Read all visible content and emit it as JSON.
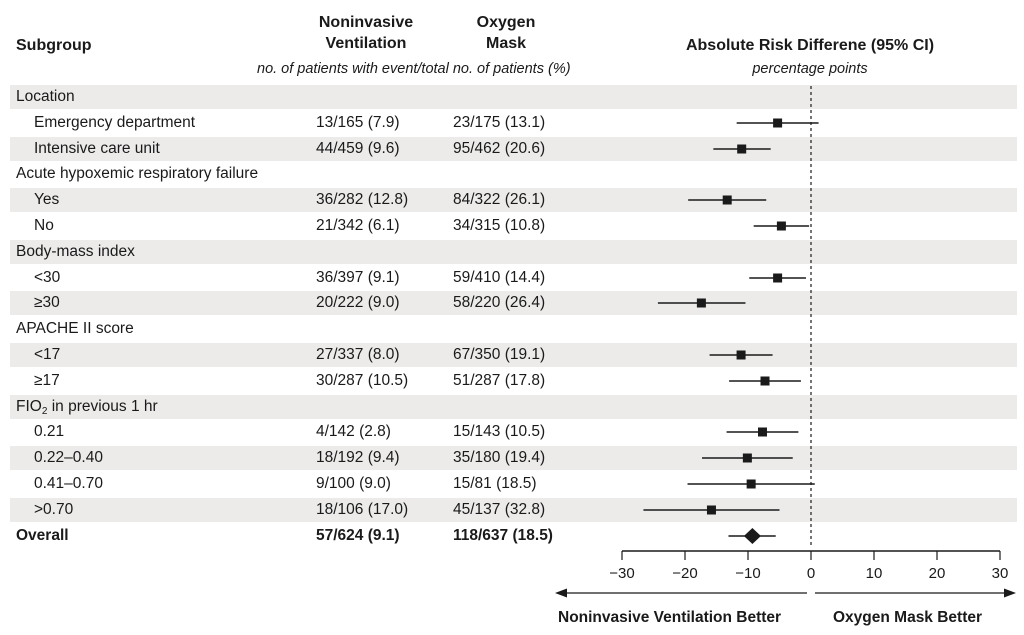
{
  "chart_data": {
    "type": "forest",
    "headers": {
      "subgroup": "Subgroup",
      "niv": "Noninvasive Ventilation",
      "niv_line1": "Noninvasive",
      "niv_line2": "Ventilation",
      "om": "Oxygen Mask",
      "om_line1": "Oxygen",
      "om_line2": "Mask",
      "counts_note": "no. of patients with event/total no. of patients (%)",
      "effect": "Absolute Risk Differene (95% CI)",
      "effect_units": "percentage points"
    },
    "xlim": [
      -30,
      30
    ],
    "xticks": [
      -30,
      -20,
      -10,
      0,
      10,
      20,
      30
    ],
    "xtick_labels": [
      "−30",
      "−20",
      "−10",
      "0",
      "10",
      "20",
      "30"
    ],
    "left_favors": "Noninvasive Ventilation Better",
    "right_favors": "Oxygen Mask Better",
    "rows": [
      {
        "kind": "group",
        "label": "Location"
      },
      {
        "kind": "item",
        "label": "Emergency department",
        "niv": "13/165 (7.9)",
        "om": "23/175 (13.1)",
        "est": -5.3,
        "lo": -11.8,
        "hi": 1.2
      },
      {
        "kind": "item",
        "label": "Intensive care unit",
        "niv": "44/459 (9.6)",
        "om": "95/462 (20.6)",
        "est": -11.0,
        "lo": -15.5,
        "hi": -6.4
      },
      {
        "kind": "group",
        "label": "Acute hypoxemic respiratory failure"
      },
      {
        "kind": "item",
        "label": "Yes",
        "niv": "36/282 (12.8)",
        "om": "84/322 (26.1)",
        "est": -13.3,
        "lo": -19.5,
        "hi": -7.1
      },
      {
        "kind": "item",
        "label": "No",
        "niv": "21/342 (6.1)",
        "om": "34/315 (10.8)",
        "est": -4.7,
        "lo": -9.1,
        "hi": -0.3
      },
      {
        "kind": "group",
        "label": "Body-mass index"
      },
      {
        "kind": "item",
        "label": "<30",
        "niv": "36/397 (9.1)",
        "om": "59/410 (14.4)",
        "est": -5.3,
        "lo": -9.8,
        "hi": -0.8
      },
      {
        "kind": "item",
        "label": "≥30",
        "niv": "20/222 (9.0)",
        "om": "58/220 (26.4)",
        "est": -17.4,
        "lo": -24.3,
        "hi": -10.4
      },
      {
        "kind": "group",
        "label": "APACHE II score"
      },
      {
        "kind": "item",
        "label": "<17",
        "niv": "27/337 (8.0)",
        "om": "67/350 (19.1)",
        "est": -11.1,
        "lo": -16.1,
        "hi": -6.1
      },
      {
        "kind": "item",
        "label": "≥17",
        "niv": "30/287 (10.5)",
        "om": "51/287 (17.8)",
        "est": -7.3,
        "lo": -13.0,
        "hi": -1.6
      },
      {
        "kind": "group",
        "label": "FIO2 in previous 1 hr",
        "label_main": "FIO",
        "label_sub": "2",
        "label_rest": " in previous 1 hr"
      },
      {
        "kind": "item",
        "label": "0.21",
        "niv": "4/142 (2.8)",
        "om": "15/143 (10.5)",
        "est": -7.7,
        "lo": -13.4,
        "hi": -2.0
      },
      {
        "kind": "item",
        "label": "0.22–0.40",
        "niv": "18/192 (9.4)",
        "om": "35/180 (19.4)",
        "est": -10.1,
        "lo": -17.3,
        "hi": -2.9
      },
      {
        "kind": "item",
        "label": "0.41–0.70",
        "niv": "9/100 (9.0)",
        "om": "15/81 (18.5)",
        "est": -9.5,
        "lo": -19.6,
        "hi": 0.6
      },
      {
        "kind": "item",
        "label": ">0.70",
        "niv": "18/106 (17.0)",
        "om": "45/137 (32.8)",
        "est": -15.8,
        "lo": -26.6,
        "hi": -5.0
      },
      {
        "kind": "overall",
        "label": "Overall",
        "niv": "57/624 (9.1)",
        "om": "118/637 (18.5)",
        "est": -9.3,
        "lo": -13.1,
        "hi": -5.6
      }
    ]
  }
}
